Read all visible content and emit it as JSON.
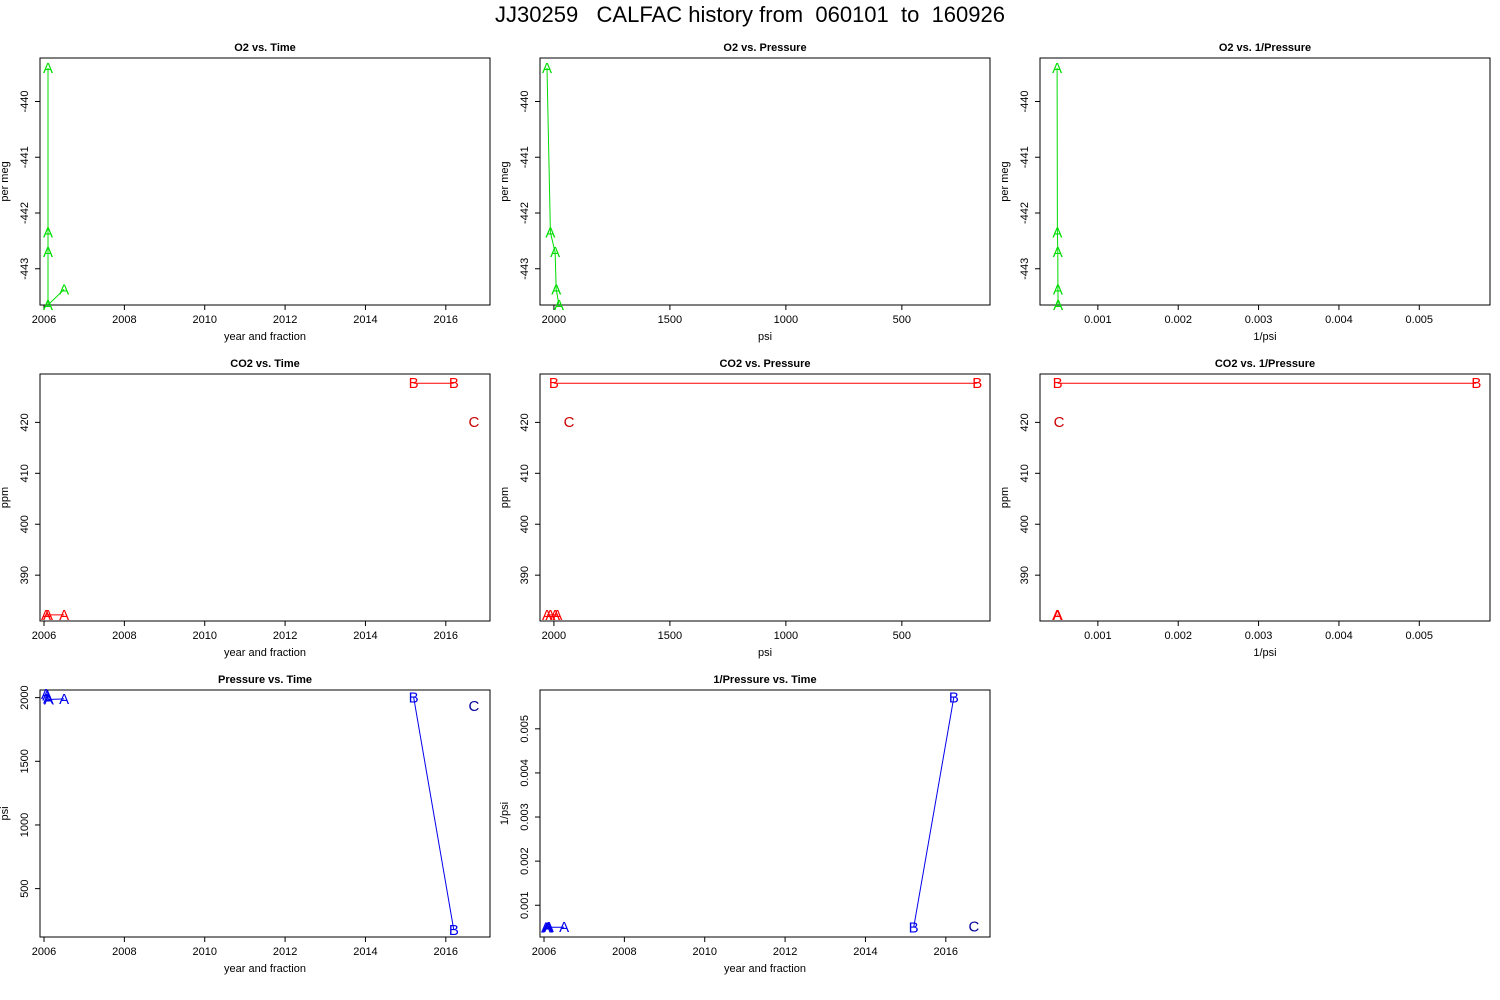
{
  "page": {
    "title": "JJ30259   CALFAC history from  060101  to  160926"
  },
  "chart_data": [
    {
      "id": "o2-time",
      "type": "scatter",
      "title": "O2 vs. Time",
      "xlabel": "year and fraction",
      "ylabel": "per meg",
      "xlim": [
        2005.9,
        2017.1
      ],
      "ylim": [
        -443.65,
        -439.22
      ],
      "xticks": [
        2006,
        2008,
        2010,
        2012,
        2014,
        2016
      ],
      "xtick_labels": [
        "2006",
        "2008",
        "2010",
        "2012",
        "2014",
        "2016"
      ],
      "yticks": [
        -443,
        -442,
        -441,
        -440
      ],
      "ytick_labels": [
        "-443",
        "-442",
        "-441",
        "-440"
      ],
      "series": [
        {
          "color": "#00dd00",
          "line": true,
          "points": [
            {
              "x": 2006.1,
              "y": -439.4,
              "label": "A"
            },
            {
              "x": 2006.1,
              "y": -442.35,
              "label": "A"
            },
            {
              "x": 2006.1,
              "y": -442.7,
              "label": "A"
            },
            {
              "x": 2006.1,
              "y": -443.65,
              "label": "A"
            },
            {
              "x": 2006.5,
              "y": -443.37,
              "label": "A"
            }
          ]
        }
      ]
    },
    {
      "id": "o2-pressure",
      "type": "scatter",
      "title": "O2 vs. Pressure",
      "xlabel": "psi",
      "ylabel": "per meg",
      "xreverse": true,
      "xlim": [
        2060,
        120
      ],
      "ylim": [
        -443.65,
        -439.22
      ],
      "xticks": [
        2000,
        1500,
        1000,
        500
      ],
      "xtick_labels": [
        "2000",
        "1500",
        "1000",
        "500"
      ],
      "yticks": [
        -443,
        -442,
        -441,
        -440
      ],
      "ytick_labels": [
        "-443",
        "-442",
        "-441",
        "-440"
      ],
      "series": [
        {
          "color": "#00dd00",
          "line": true,
          "points": [
            {
              "x": 2030,
              "y": -439.4,
              "label": "A"
            },
            {
              "x": 2015,
              "y": -442.35,
              "label": "A"
            },
            {
              "x": 1995,
              "y": -442.7,
              "label": "A"
            },
            {
              "x": 1990,
              "y": -443.37,
              "label": "A"
            },
            {
              "x": 1978,
              "y": -443.65,
              "label": "A"
            }
          ]
        }
      ]
    },
    {
      "id": "o2-invpressure",
      "type": "scatter",
      "title": "O2 vs. 1/Pressure",
      "xlabel": "1/psi",
      "ylabel": "per meg",
      "xlim": [
        0.00028,
        0.00588
      ],
      "ylim": [
        -443.65,
        -439.22
      ],
      "xticks": [
        0.001,
        0.002,
        0.003,
        0.004,
        0.005
      ],
      "xtick_labels": [
        "0.001",
        "0.002",
        "0.003",
        "0.004",
        "0.005"
      ],
      "yticks": [
        -443,
        -442,
        -441,
        -440
      ],
      "ytick_labels": [
        "-443",
        "-442",
        "-441",
        "-440"
      ],
      "series": [
        {
          "color": "#00dd00",
          "line": true,
          "points": [
            {
              "x": 0.000493,
              "y": -439.4,
              "label": "A"
            },
            {
              "x": 0.000497,
              "y": -442.35,
              "label": "A"
            },
            {
              "x": 0.000501,
              "y": -442.7,
              "label": "A"
            },
            {
              "x": 0.000503,
              "y": -443.37,
              "label": "A"
            },
            {
              "x": 0.000505,
              "y": -443.65,
              "label": "A"
            }
          ]
        }
      ]
    },
    {
      "id": "co2-time",
      "type": "scatter",
      "title": "CO2 vs. Time",
      "xlabel": "year and fraction",
      "ylabel": "ppm",
      "xlim": [
        2005.9,
        2017.1
      ],
      "ylim": [
        381,
        429.5
      ],
      "xticks": [
        2006,
        2008,
        2010,
        2012,
        2014,
        2016
      ],
      "xtick_labels": [
        "2006",
        "2008",
        "2010",
        "2012",
        "2014",
        "2016"
      ],
      "yticks": [
        390,
        400,
        410,
        420
      ],
      "ytick_labels": [
        "390",
        "400",
        "410",
        "420"
      ],
      "series": [
        {
          "color": "#ff0000",
          "line": true,
          "points": [
            {
              "x": 2006.05,
              "y": 382.2,
              "label": "A"
            },
            {
              "x": 2006.1,
              "y": 382.2,
              "label": "A"
            },
            {
              "x": 2006.5,
              "y": 382.2,
              "label": "A"
            }
          ]
        },
        {
          "color": "#ff0000",
          "line": true,
          "points": [
            {
              "x": 2015.2,
              "y": 427.7,
              "label": "B"
            },
            {
              "x": 2016.2,
              "y": 427.7,
              "label": "B"
            }
          ]
        },
        {
          "color": "#cc0000",
          "line": false,
          "points": [
            {
              "x": 2016.7,
              "y": 420.1,
              "label": "C"
            }
          ]
        }
      ]
    },
    {
      "id": "co2-pressure",
      "type": "scatter",
      "title": "CO2 vs. Pressure",
      "xlabel": "psi",
      "ylabel": "ppm",
      "xreverse": true,
      "xlim": [
        2060,
        120
      ],
      "ylim": [
        381,
        429.5
      ],
      "xticks": [
        2000,
        1500,
        1000,
        500
      ],
      "xtick_labels": [
        "2000",
        "1500",
        "1000",
        "500"
      ],
      "yticks": [
        390,
        400,
        410,
        420
      ],
      "ytick_labels": [
        "390",
        "400",
        "410",
        "420"
      ],
      "series": [
        {
          "color": "#ff0000",
          "line": true,
          "points": [
            {
              "x": 2030,
              "y": 382.2,
              "label": "A"
            },
            {
              "x": 2015,
              "y": 382.2,
              "label": "A"
            },
            {
              "x": 1995,
              "y": 382.2,
              "label": "A"
            },
            {
              "x": 1985,
              "y": 382.2,
              "label": "A"
            }
          ]
        },
        {
          "color": "#ff0000",
          "line": true,
          "points": [
            {
              "x": 2000,
              "y": 427.7,
              "label": "B"
            },
            {
              "x": 175,
              "y": 427.7,
              "label": "B"
            }
          ]
        },
        {
          "color": "#cc0000",
          "line": false,
          "points": [
            {
              "x": 1935,
              "y": 420.1,
              "label": "C"
            }
          ]
        }
      ]
    },
    {
      "id": "co2-invpressure",
      "type": "scatter",
      "title": "CO2 vs. 1/Pressure",
      "xlabel": "1/psi",
      "ylabel": "ppm",
      "xlim": [
        0.00028,
        0.00588
      ],
      "ylim": [
        381,
        429.5
      ],
      "xticks": [
        0.001,
        0.002,
        0.003,
        0.004,
        0.005
      ],
      "xtick_labels": [
        "0.001",
        "0.002",
        "0.003",
        "0.004",
        "0.005"
      ],
      "yticks": [
        390,
        400,
        410,
        420
      ],
      "ytick_labels": [
        "390",
        "400",
        "410",
        "420"
      ],
      "series": [
        {
          "color": "#ff0000",
          "line": true,
          "points": [
            {
              "x": 0.000493,
              "y": 382.2,
              "label": "A"
            },
            {
              "x": 0.000497,
              "y": 382.2,
              "label": "A"
            },
            {
              "x": 0.000501,
              "y": 382.2,
              "label": "A"
            }
          ]
        },
        {
          "color": "#ff0000",
          "line": true,
          "points": [
            {
              "x": 0.0005,
              "y": 427.7,
              "label": "B"
            },
            {
              "x": 0.00571,
              "y": 427.7,
              "label": "B"
            }
          ]
        },
        {
          "color": "#cc0000",
          "line": false,
          "points": [
            {
              "x": 0.000517,
              "y": 420.1,
              "label": "C"
            }
          ]
        }
      ]
    },
    {
      "id": "pressure-time",
      "type": "scatter",
      "title": "Pressure vs. Time",
      "xlabel": "year and fraction",
      "ylabel": "psi",
      "xlim": [
        2005.9,
        2017.1
      ],
      "ylim": [
        120,
        2060
      ],
      "xticks": [
        2006,
        2008,
        2010,
        2012,
        2014,
        2016
      ],
      "xtick_labels": [
        "2006",
        "2008",
        "2010",
        "2012",
        "2014",
        "2016"
      ],
      "yticks": [
        500,
        1000,
        1500,
        2000
      ],
      "ytick_labels": [
        "500",
        "1000",
        "1500",
        "2000"
      ],
      "series": [
        {
          "color": "#0000ee",
          "line": true,
          "points": [
            {
              "x": 2006.05,
              "y": 2030,
              "label": "A"
            },
            {
              "x": 2006.08,
              "y": 2015,
              "label": "A"
            },
            {
              "x": 2006.1,
              "y": 1995,
              "label": "A"
            },
            {
              "x": 2006.12,
              "y": 1985,
              "label": "A"
            },
            {
              "x": 2006.5,
              "y": 1990,
              "label": "A"
            }
          ]
        },
        {
          "color": "#0000ee",
          "line": true,
          "points": [
            {
              "x": 2015.2,
              "y": 2000,
              "label": "B"
            },
            {
              "x": 2016.2,
              "y": 175,
              "label": "B"
            }
          ]
        },
        {
          "color": "#000099",
          "line": false,
          "points": [
            {
              "x": 2016.7,
              "y": 1935,
              "label": "C"
            }
          ]
        }
      ]
    },
    {
      "id": "invpressure-time",
      "type": "scatter",
      "title": "1/Pressure vs. Time",
      "xlabel": "year and fraction",
      "ylabel": "1/psi",
      "xlim": [
        2005.9,
        2017.1
      ],
      "ylim": [
        0.00028,
        0.00588
      ],
      "xticks": [
        2006,
        2008,
        2010,
        2012,
        2014,
        2016
      ],
      "xtick_labels": [
        "2006",
        "2008",
        "2010",
        "2012",
        "2014",
        "2016"
      ],
      "yticks": [
        0.001,
        0.002,
        0.003,
        0.004,
        0.005
      ],
      "ytick_labels": [
        "0.001",
        "0.002",
        "0.003",
        "0.004",
        "0.005"
      ],
      "series": [
        {
          "color": "#0000ee",
          "line": true,
          "points": [
            {
              "x": 2006.05,
              "y": 0.000493,
              "label": "A"
            },
            {
              "x": 2006.08,
              "y": 0.000497,
              "label": "A"
            },
            {
              "x": 2006.1,
              "y": 0.000501,
              "label": "A"
            },
            {
              "x": 2006.12,
              "y": 0.000503,
              "label": "A"
            },
            {
              "x": 2006.5,
              "y": 0.000502,
              "label": "A"
            }
          ]
        },
        {
          "color": "#0000ee",
          "line": true,
          "points": [
            {
              "x": 2015.2,
              "y": 0.0005,
              "label": "B"
            },
            {
              "x": 2016.2,
              "y": 0.00571,
              "label": "B"
            }
          ]
        },
        {
          "color": "#000099",
          "line": false,
          "points": [
            {
              "x": 2016.7,
              "y": 0.000517,
              "label": "C"
            }
          ]
        }
      ]
    }
  ]
}
